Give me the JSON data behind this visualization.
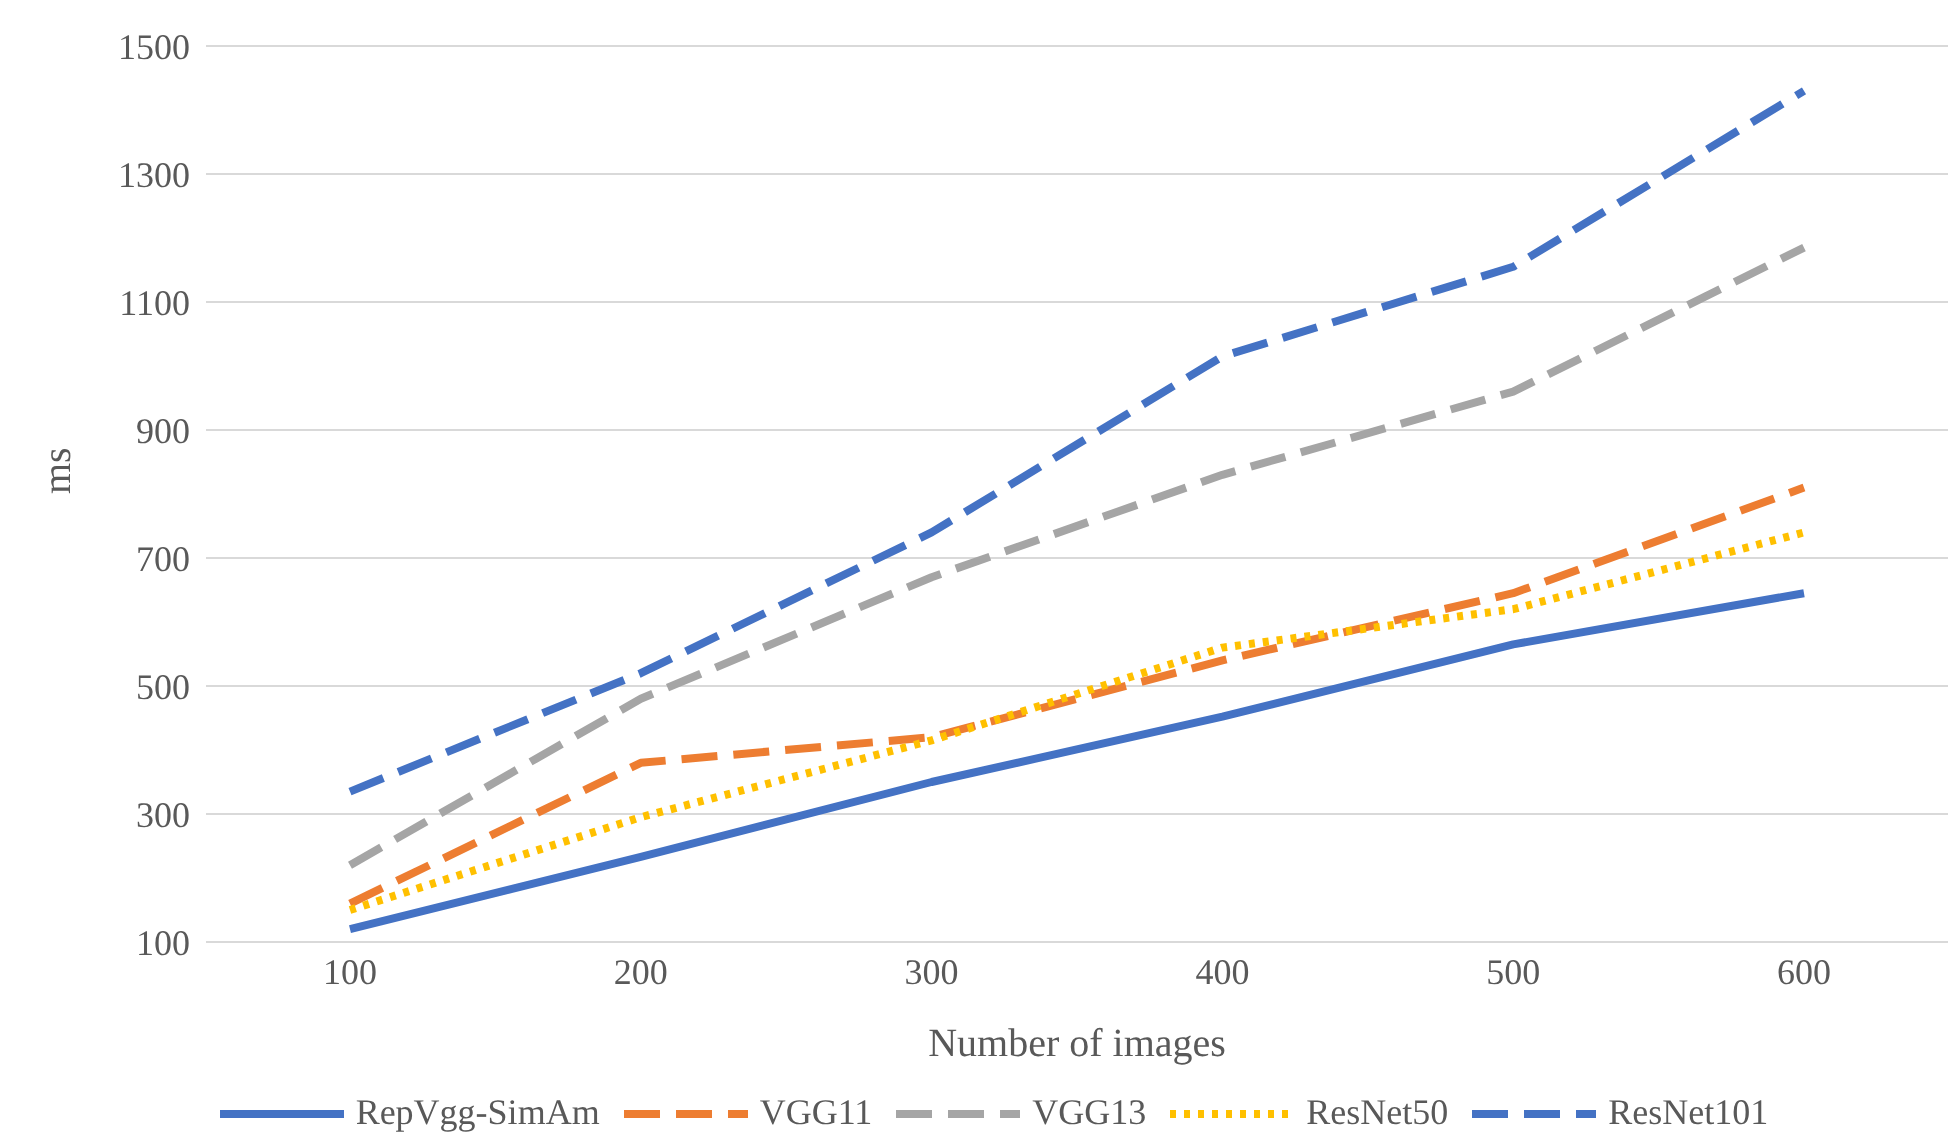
{
  "chart_data": {
    "type": "line",
    "xlabel": "Number of images",
    "ylabel": "ms",
    "categories": [
      "100",
      "200",
      "300",
      "400",
      "500",
      "600"
    ],
    "series": [
      {
        "name": "RepVgg-SimAm",
        "color": "#4472c4",
        "line_style": "solid",
        "values": [
          120,
          233,
          350,
          452,
          565,
          645
        ]
      },
      {
        "name": "VGG11",
        "color": "#ed7d31",
        "line_style": "dashed",
        "values": [
          160,
          380,
          420,
          540,
          645,
          810
        ]
      },
      {
        "name": "VGG13",
        "color": "#a5a5a5",
        "line_style": "dashed",
        "values": [
          220,
          480,
          670,
          830,
          960,
          1185
        ]
      },
      {
        "name": "ResNet50",
        "color": "#ffc000",
        "line_style": "dotted",
        "values": [
          150,
          295,
          415,
          560,
          620,
          740
        ]
      },
      {
        "name": "ResNet101",
        "color": "#4472c4",
        "line_style": "dashed",
        "values": [
          335,
          520,
          740,
          1015,
          1155,
          1430
        ]
      }
    ],
    "ylim": [
      100,
      1500
    ],
    "yticks": [
      100,
      300,
      500,
      700,
      900,
      1100,
      1300,
      1500
    ],
    "grid": "y",
    "legend": "bottom",
    "marker": "none"
  }
}
